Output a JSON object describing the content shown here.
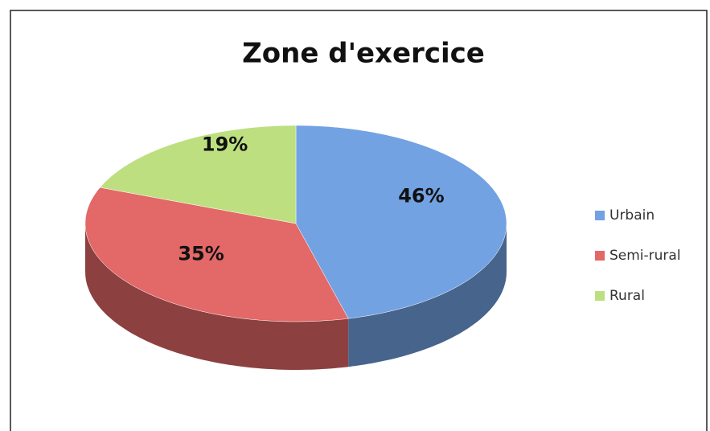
{
  "chart_data": {
    "type": "pie",
    "title": "Zone d'exercice",
    "categories": [
      "Urbain",
      "Semi-rural",
      "Rural"
    ],
    "values": [
      46,
      35,
      19
    ],
    "value_labels": [
      "46%",
      "35%",
      "19%"
    ],
    "colors": [
      "#72a2e2",
      "#e36868",
      "#bddf7f"
    ],
    "legend": "right"
  }
}
